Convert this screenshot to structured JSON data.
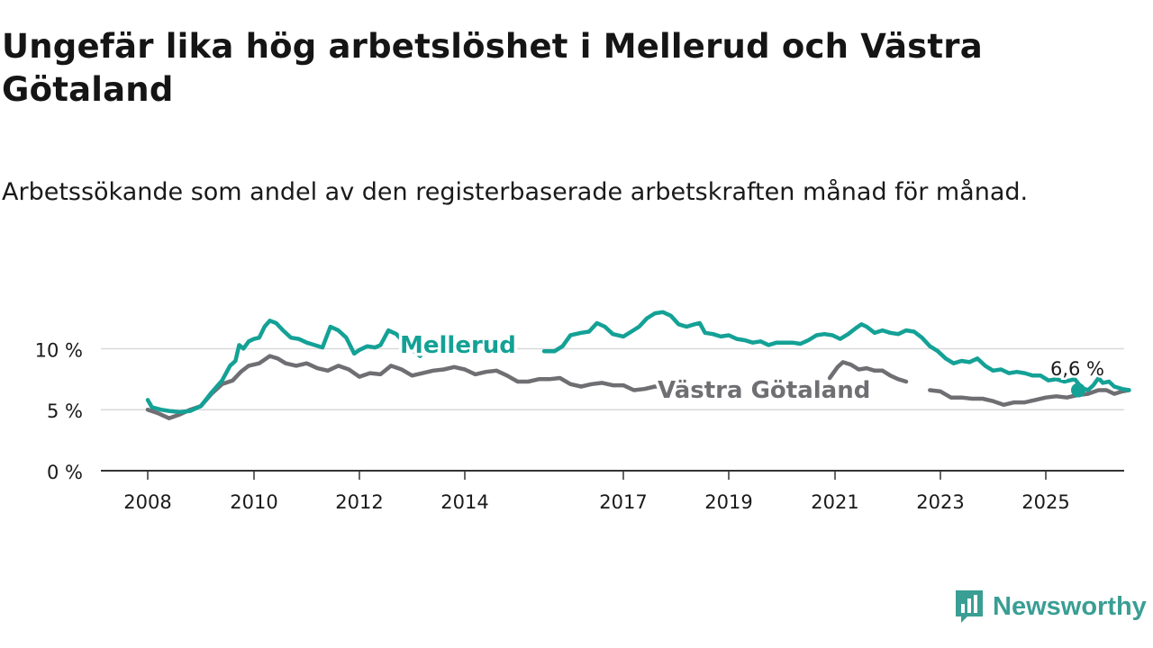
{
  "title": "Ungefär lika hög arbetslöshet i Mellerud och Västra Götaland",
  "subtitle": "Arbetssökande som andel av den registerbaserade arbetskraften månad för månad.",
  "brand": {
    "name": "Newsworthy",
    "icon": "newsworthy-logo-icon",
    "color": "#3a9e94"
  },
  "chart_data": {
    "type": "line",
    "ylim": [
      0,
      13.5
    ],
    "yticks": [
      0,
      5,
      10
    ],
    "ytick_labels": [
      "0 %",
      "5 %",
      "10 %"
    ],
    "xlim": [
      2008.0,
      2025.75
    ],
    "xticks": [
      2008,
      2010,
      2012,
      2014,
      2017,
      2019,
      2021,
      2023,
      2025
    ],
    "xtick_labels": [
      "2008",
      "2010",
      "2012",
      "2014",
      "2017",
      "2019",
      "2021",
      "2023",
      "2025"
    ],
    "grid": true,
    "series": [
      {
        "name": "Mellerud",
        "color": "#14a196",
        "points": [
          [
            2008.0,
            5.8
          ],
          [
            2008.08,
            5.2
          ],
          [
            2008.25,
            5.0
          ],
          [
            2008.4,
            4.9
          ],
          [
            2008.6,
            4.8
          ],
          [
            2008.8,
            4.9
          ],
          [
            2009.0,
            5.3
          ],
          [
            2009.2,
            6.4
          ],
          [
            2009.4,
            7.4
          ],
          [
            2009.55,
            8.6
          ],
          [
            2009.65,
            9.0
          ],
          [
            2009.72,
            10.3
          ],
          [
            2009.8,
            10.0
          ],
          [
            2009.9,
            10.6
          ],
          [
            2010.0,
            10.8
          ],
          [
            2010.1,
            10.9
          ],
          [
            2010.2,
            11.8
          ],
          [
            2010.3,
            12.3
          ],
          [
            2010.42,
            12.1
          ],
          [
            2010.55,
            11.5
          ],
          [
            2010.7,
            10.9
          ],
          [
            2010.85,
            10.8
          ],
          [
            2011.0,
            10.5
          ],
          [
            2011.15,
            10.3
          ],
          [
            2011.3,
            10.1
          ],
          [
            2011.45,
            11.8
          ],
          [
            2011.6,
            11.5
          ],
          [
            2011.75,
            10.9
          ],
          [
            2011.9,
            9.6
          ],
          [
            2012.0,
            9.9
          ],
          [
            2012.15,
            10.2
          ],
          [
            2012.3,
            10.1
          ],
          [
            2012.4,
            10.3
          ],
          [
            2012.55,
            11.5
          ],
          [
            2012.7,
            11.2
          ],
          [
            2012.85,
            10.5
          ],
          [
            2013.0,
            9.9
          ],
          [
            2013.15,
            9.4
          ],
          [
            2013.28,
            10.0
          ]
        ],
        "points_segment_2": [
          [
            2015.5,
            9.8
          ],
          [
            2015.7,
            9.8
          ],
          [
            2015.85,
            10.2
          ],
          [
            2016.0,
            11.1
          ],
          [
            2016.2,
            11.3
          ],
          [
            2016.35,
            11.4
          ],
          [
            2016.5,
            12.1
          ],
          [
            2016.65,
            11.8
          ],
          [
            2016.8,
            11.2
          ],
          [
            2017.0,
            11.0
          ],
          [
            2017.15,
            11.4
          ],
          [
            2017.3,
            11.8
          ],
          [
            2017.45,
            12.5
          ],
          [
            2017.6,
            12.9
          ],
          [
            2017.75,
            13.0
          ],
          [
            2017.9,
            12.7
          ],
          [
            2018.05,
            12.0
          ],
          [
            2018.2,
            11.8
          ],
          [
            2018.35,
            12.0
          ],
          [
            2018.45,
            12.1
          ],
          [
            2018.55,
            11.3
          ],
          [
            2018.7,
            11.2
          ],
          [
            2018.85,
            11.0
          ],
          [
            2019.0,
            11.1
          ],
          [
            2019.15,
            10.8
          ],
          [
            2019.3,
            10.7
          ],
          [
            2019.45,
            10.5
          ],
          [
            2019.6,
            10.6
          ],
          [
            2019.75,
            10.3
          ],
          [
            2019.9,
            10.5
          ],
          [
            2020.05,
            10.5
          ],
          [
            2020.2,
            10.5
          ],
          [
            2020.35,
            10.4
          ],
          [
            2020.5,
            10.7
          ],
          [
            2020.65,
            11.1
          ],
          [
            2020.8,
            11.2
          ],
          [
            2020.95,
            11.1
          ],
          [
            2021.1,
            10.8
          ],
          [
            2021.25,
            11.2
          ],
          [
            2021.4,
            11.7
          ],
          [
            2021.5,
            12.0
          ],
          [
            2021.6,
            11.8
          ],
          [
            2021.75,
            11.3
          ],
          [
            2021.9,
            11.5
          ],
          [
            2022.05,
            11.3
          ],
          [
            2022.2,
            11.2
          ],
          [
            2022.35,
            11.5
          ],
          [
            2022.5,
            11.4
          ],
          [
            2022.65,
            10.9
          ],
          [
            2022.8,
            10.2
          ],
          [
            2022.95,
            9.8
          ],
          [
            2023.1,
            9.2
          ],
          [
            2023.25,
            8.8
          ],
          [
            2023.4,
            9.0
          ],
          [
            2023.55,
            8.9
          ],
          [
            2023.7,
            9.2
          ],
          [
            2023.85,
            8.6
          ],
          [
            2024.0,
            8.2
          ],
          [
            2024.15,
            8.3
          ],
          [
            2024.3,
            8.0
          ],
          [
            2024.45,
            8.1
          ],
          [
            2024.6,
            8.0
          ],
          [
            2024.75,
            7.8
          ],
          [
            2024.9,
            7.8
          ],
          [
            2025.05,
            7.4
          ],
          [
            2025.2,
            7.5
          ],
          [
            2025.35,
            7.3
          ],
          [
            2025.45,
            7.4
          ],
          [
            2025.55,
            7.5
          ],
          [
            2025.68,
            6.8
          ],
          [
            2025.8,
            6.6
          ],
          [
            2025.9,
            7.0
          ],
          [
            2026.0,
            7.6
          ],
          [
            2026.08,
            7.2
          ],
          [
            2026.2,
            7.3
          ],
          [
            2026.3,
            6.9
          ],
          [
            2026.45,
            6.7
          ],
          [
            2026.58,
            6.6
          ]
        ]
      },
      {
        "name": "Västra Götaland",
        "color": "#6f6f73",
        "points": [
          [
            2008.0,
            5.0
          ],
          [
            2008.2,
            4.7
          ],
          [
            2008.4,
            4.3
          ],
          [
            2008.6,
            4.6
          ],
          [
            2008.8,
            5.0
          ],
          [
            2009.0,
            5.3
          ],
          [
            2009.2,
            6.3
          ],
          [
            2009.4,
            7.1
          ],
          [
            2009.6,
            7.4
          ],
          [
            2009.75,
            8.1
          ],
          [
            2009.9,
            8.6
          ],
          [
            2010.1,
            8.8
          ],
          [
            2010.3,
            9.4
          ],
          [
            2010.45,
            9.2
          ],
          [
            2010.6,
            8.8
          ],
          [
            2010.8,
            8.6
          ],
          [
            2011.0,
            8.8
          ],
          [
            2011.2,
            8.4
          ],
          [
            2011.4,
            8.2
          ],
          [
            2011.6,
            8.6
          ],
          [
            2011.8,
            8.3
          ],
          [
            2012.0,
            7.7
          ],
          [
            2012.2,
            8.0
          ],
          [
            2012.4,
            7.9
          ],
          [
            2012.6,
            8.6
          ],
          [
            2012.8,
            8.3
          ],
          [
            2013.0,
            7.8
          ],
          [
            2013.2,
            8.0
          ],
          [
            2013.4,
            8.2
          ],
          [
            2013.6,
            8.3
          ],
          [
            2013.8,
            8.5
          ],
          [
            2014.0,
            8.3
          ],
          [
            2014.2,
            7.9
          ],
          [
            2014.4,
            8.1
          ],
          [
            2014.6,
            8.2
          ],
          [
            2014.8,
            7.8
          ],
          [
            2015.0,
            7.3
          ],
          [
            2015.2,
            7.3
          ],
          [
            2015.4,
            7.5
          ],
          [
            2015.6,
            7.5
          ],
          [
            2015.8,
            7.6
          ],
          [
            2016.0,
            7.1
          ],
          [
            2016.2,
            6.9
          ],
          [
            2016.4,
            7.1
          ],
          [
            2016.6,
            7.2
          ],
          [
            2016.8,
            7.0
          ],
          [
            2017.0,
            7.0
          ],
          [
            2017.2,
            6.6
          ],
          [
            2017.4,
            6.7
          ],
          [
            2017.6,
            6.9
          ],
          [
            2017.8,
            6.9
          ],
          [
            2018.0,
            6.6
          ],
          [
            2018.2,
            6.4
          ],
          [
            2018.4,
            6.5
          ]
        ],
        "points_segment_2": [
          [
            2020.9,
            7.6
          ],
          [
            2021.05,
            8.5
          ],
          [
            2021.15,
            8.9
          ],
          [
            2021.3,
            8.7
          ],
          [
            2021.45,
            8.3
          ],
          [
            2021.6,
            8.4
          ],
          [
            2021.75,
            8.2
          ],
          [
            2021.9,
            8.2
          ],
          [
            2022.05,
            7.8
          ],
          [
            2022.2,
            7.5
          ],
          [
            2022.35,
            7.3
          ]
        ],
        "points_segment_3": [
          [
            2022.8,
            6.6
          ],
          [
            2023.0,
            6.5
          ],
          [
            2023.2,
            6.0
          ],
          [
            2023.4,
            6.0
          ],
          [
            2023.6,
            5.9
          ],
          [
            2023.8,
            5.9
          ],
          [
            2024.0,
            5.7
          ],
          [
            2024.2,
            5.4
          ],
          [
            2024.4,
            5.6
          ],
          [
            2024.6,
            5.6
          ],
          [
            2024.8,
            5.8
          ],
          [
            2025.0,
            6.0
          ],
          [
            2025.2,
            6.1
          ],
          [
            2025.4,
            6.0
          ],
          [
            2025.6,
            6.2
          ],
          [
            2025.8,
            6.3
          ],
          [
            2026.0,
            6.6
          ],
          [
            2026.15,
            6.6
          ],
          [
            2026.3,
            6.3
          ],
          [
            2026.45,
            6.5
          ],
          [
            2026.58,
            6.6
          ]
        ]
      }
    ],
    "labels": {
      "mellerud": "Mellerud",
      "vg": "Västra Götaland",
      "last_value": "6,6 %"
    }
  }
}
